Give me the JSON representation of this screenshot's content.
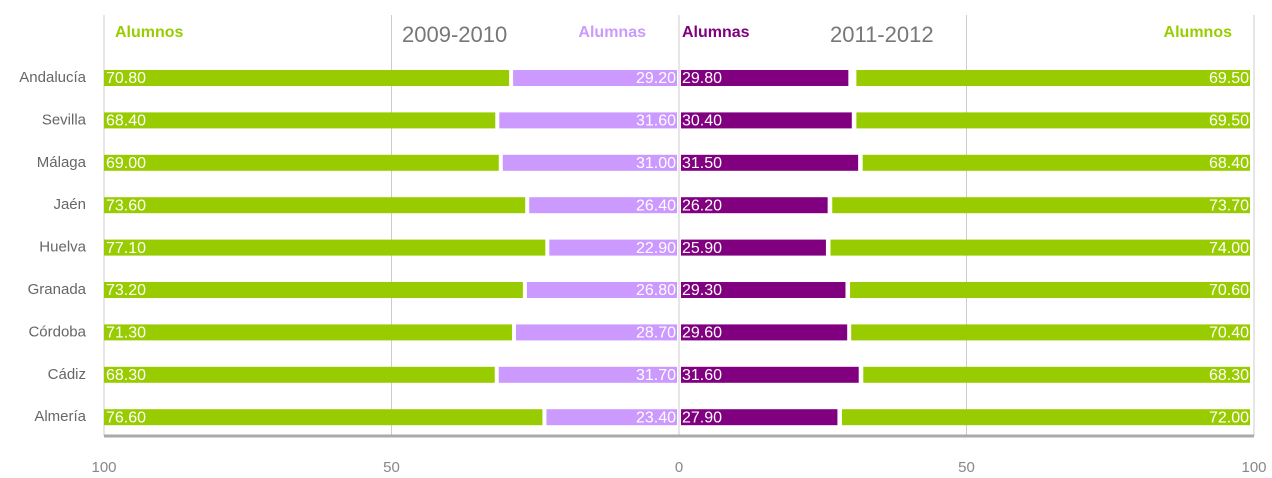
{
  "chart_data": {
    "type": "diverging-bar",
    "categories": [
      "Andalucía",
      "Sevilla",
      "Málaga",
      "Jaén",
      "Huelva",
      "Granada",
      "Córdoba",
      "Cádiz",
      "Almería"
    ],
    "xlim": [
      -100,
      100
    ],
    "xticks": [
      {
        "value": -100,
        "label": "100"
      },
      {
        "value": -50,
        "label": "50"
      },
      0,
      50,
      100
    ],
    "grid": true,
    "groups": [
      {
        "title": "2009-2010",
        "side": "left",
        "series": [
          {
            "name": "Alumnos",
            "color": "#99cc00",
            "values": [
              70.8,
              68.4,
              69.0,
              73.6,
              77.1,
              73.2,
              71.3,
              68.3,
              76.6
            ],
            "value_labels": [
              "70.80",
              "68.40",
              "69.00",
              "73.60",
              "77.10",
              "73.20",
              "71.30",
              "68.30",
              "76.60"
            ]
          },
          {
            "name": "Alumnas",
            "color": "#cc99ff",
            "values": [
              29.2,
              31.6,
              31.0,
              26.4,
              22.9,
              26.8,
              28.7,
              31.7,
              23.4
            ],
            "value_labels": [
              "29.20",
              "31.60",
              "31.00",
              "26.40",
              "22.90",
              "26.80",
              "28.70",
              "31.70",
              "23.40"
            ]
          }
        ]
      },
      {
        "title": "2011-2012",
        "side": "right",
        "series": [
          {
            "name": "Alumnas",
            "color": "#800080",
            "values": [
              29.8,
              30.4,
              31.5,
              26.2,
              25.9,
              29.3,
              29.6,
              31.6,
              27.9
            ],
            "value_labels": [
              "29.80",
              "30.40",
              "31.50",
              "26.20",
              "25.90",
              "29.30",
              "29.60",
              "31.60",
              "27.90"
            ]
          },
          {
            "name": "Alumnos",
            "color": "#99cc00",
            "values": [
              69.5,
              69.5,
              68.4,
              73.7,
              74.0,
              70.6,
              70.4,
              68.3,
              72.0
            ],
            "value_labels": [
              "69.50",
              "69.50",
              "68.40",
              "73.70",
              "74.00",
              "70.60",
              "70.40",
              "68.30",
              "72.00"
            ]
          }
        ]
      }
    ]
  }
}
